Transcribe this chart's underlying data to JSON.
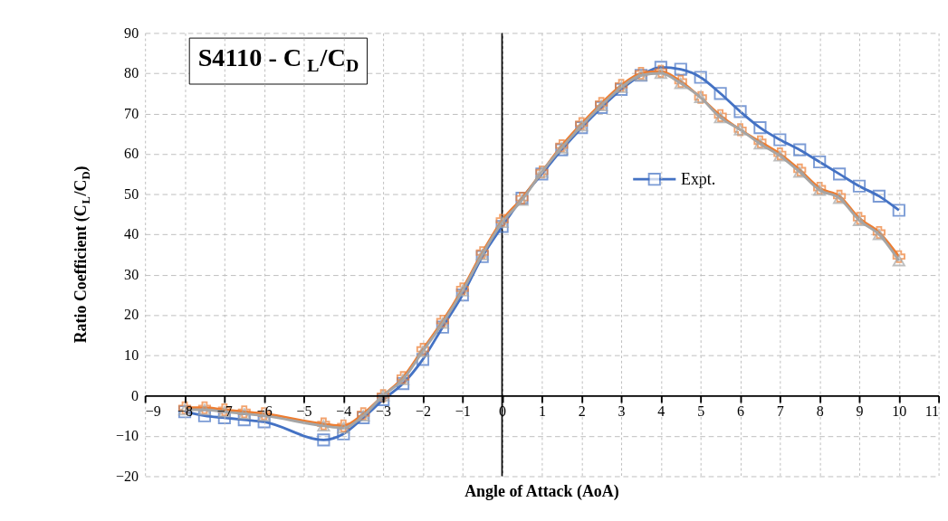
{
  "chart_data": {
    "type": "line",
    "title": "S4110 - C$_{L}$/C$_{D}$",
    "xlabel": "Angle of Attack (AoA)",
    "ylabel": "Ratio Coefficient (C$_{L}$/C$_{D}$)",
    "x": [
      -8,
      -7.5,
      -7,
      -6.5,
      -6,
      -4.5,
      -4,
      -3.5,
      -3,
      -2.5,
      -2,
      -1.5,
      -1,
      -0.5,
      0,
      0.5,
      1,
      1.5,
      2,
      2.5,
      3,
      3.5,
      4,
      4.5,
      5,
      5.5,
      6,
      6.5,
      7,
      7.5,
      8,
      8.5,
      9,
      9.5,
      10
    ],
    "series": [
      {
        "name": "Expt.",
        "color": "#4472c4",
        "marker": "square",
        "values": [
          -4,
          -5,
          -5.5,
          -6,
          -6.5,
          -11,
          -9.5,
          -5.5,
          -1,
          3,
          9,
          17,
          25,
          34.5,
          42,
          49,
          55,
          61,
          66.5,
          71.5,
          76,
          79.5,
          81.5,
          81,
          79,
          75,
          70.5,
          66.5,
          63.5,
          61,
          58,
          55,
          52,
          49.5,
          46
        ]
      },
      {
        "color": "#ed7d31",
        "marker": "cross",
        "values": [
          -3,
          -3,
          -3.5,
          -4,
          -4.5,
          -7,
          -7.5,
          -4.5,
          0,
          4.5,
          11.5,
          18.5,
          26.5,
          35.5,
          43.5,
          49,
          55.5,
          62,
          67.5,
          72.5,
          77,
          80,
          80.5,
          78,
          74,
          69.5,
          66,
          63,
          60,
          56,
          51.5,
          49.5,
          44,
          40.5,
          34.5
        ]
      },
      {
        "color": "#a5a5a5",
        "marker": "triangle",
        "values": [
          -3.5,
          -3.5,
          -4,
          -4.5,
          -5,
          -7.5,
          -8,
          -5,
          0,
          4,
          11,
          18,
          26,
          35,
          43,
          48.5,
          55.5,
          61.5,
          67,
          72,
          76.5,
          79.5,
          80,
          77.5,
          74,
          69,
          66,
          62.5,
          59.5,
          55.5,
          51,
          49,
          43.5,
          40,
          33.5
        ]
      }
    ],
    "xlim": [
      -9,
      11
    ],
    "xticks": [
      -9,
      -8,
      -7,
      -6,
      -5,
      -4,
      -3,
      -2,
      -1,
      0,
      1,
      2,
      3,
      4,
      5,
      6,
      7,
      8,
      9,
      10,
      11
    ],
    "ylim": [
      -20,
      90
    ],
    "yticks": [
      -20,
      -10,
      0,
      10,
      20,
      30,
      40,
      50,
      60,
      70,
      80,
      90
    ],
    "grid": true,
    "legend": "right",
    "line_style": "solid"
  }
}
